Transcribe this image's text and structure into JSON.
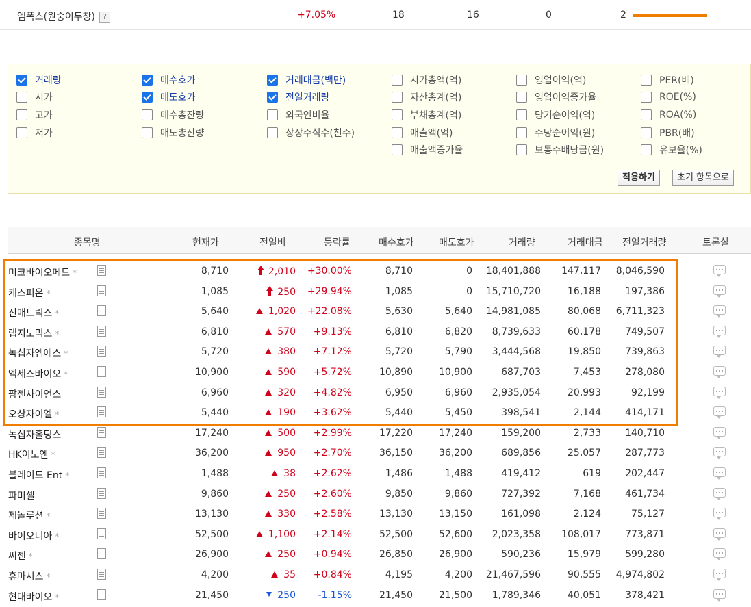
{
  "top_row": {
    "name": "엠폭스(원숭이두창)",
    "help": "?",
    "rate": "+7.05%",
    "v1": "18",
    "v2": "16",
    "v3": "0",
    "v4": "2",
    "bar_fraction": 1.0
  },
  "options": {
    "columns": [
      [
        {
          "label": "거래량",
          "checked": true
        },
        {
          "label": "시가",
          "checked": false
        },
        {
          "label": "고가",
          "checked": false
        },
        {
          "label": "저가",
          "checked": false
        }
      ],
      [
        {
          "label": "매수호가",
          "checked": true
        },
        {
          "label": "매도호가",
          "checked": true
        },
        {
          "label": "매수총잔량",
          "checked": false
        },
        {
          "label": "매도총잔량",
          "checked": false
        }
      ],
      [
        {
          "label": "거래대금(백만)",
          "checked": true
        },
        {
          "label": "전일거래량",
          "checked": true
        },
        {
          "label": "외국인비율",
          "checked": false
        },
        {
          "label": "상장주식수(천주)",
          "checked": false
        }
      ],
      [
        {
          "label": "시가총액(억)",
          "checked": false
        },
        {
          "label": "자산총계(억)",
          "checked": false
        },
        {
          "label": "부채총계(억)",
          "checked": false
        },
        {
          "label": "매출액(억)",
          "checked": false
        },
        {
          "label": "매출액증가율",
          "checked": false
        }
      ],
      [
        {
          "label": "영업이익(억)",
          "checked": false
        },
        {
          "label": "영업이익증가율",
          "checked": false
        },
        {
          "label": "당기순이익(억)",
          "checked": false
        },
        {
          "label": "주당순이익(원)",
          "checked": false
        },
        {
          "label": "보통주배당금(원)",
          "checked": false
        }
      ],
      [
        {
          "label": "PER(배)",
          "checked": false
        },
        {
          "label": "ROE(%)",
          "checked": false
        },
        {
          "label": "ROA(%)",
          "checked": false
        },
        {
          "label": "PBR(배)",
          "checked": false
        },
        {
          "label": "유보율(%)",
          "checked": false
        }
      ]
    ],
    "apply_label": "적용하기",
    "reset_label": "초기 항목으로"
  },
  "table": {
    "headers": [
      "종목명",
      "현재가",
      "전일비",
      "등락률",
      "매수호가",
      "매도호가",
      "거래량",
      "거래대금",
      "전일거래량",
      "토론실"
    ],
    "rows": [
      {
        "name": "미코바이오메드",
        "star": "*",
        "price": "8,710",
        "dir": "limit",
        "change": "2,010",
        "rate": "+30.00%",
        "bid": "8,710",
        "ask": "0",
        "vol": "18,401,888",
        "amt": "147,117",
        "prev": "8,046,590"
      },
      {
        "name": "케스피온",
        "star": "*",
        "price": "1,085",
        "dir": "limit",
        "change": "250",
        "rate": "+29.94%",
        "bid": "1,085",
        "ask": "0",
        "vol": "15,710,720",
        "amt": "16,188",
        "prev": "197,386"
      },
      {
        "name": "진매트릭스",
        "star": "*",
        "price": "5,640",
        "dir": "up",
        "change": "1,020",
        "rate": "+22.08%",
        "bid": "5,630",
        "ask": "5,640",
        "vol": "14,981,085",
        "amt": "80,068",
        "prev": "6,711,323"
      },
      {
        "name": "랩지노믹스",
        "star": "*",
        "price": "6,810",
        "dir": "up",
        "change": "570",
        "rate": "+9.13%",
        "bid": "6,810",
        "ask": "6,820",
        "vol": "8,739,633",
        "amt": "60,178",
        "prev": "749,507"
      },
      {
        "name": "녹십자엠에스",
        "star": "*",
        "price": "5,720",
        "dir": "up",
        "change": "380",
        "rate": "+7.12%",
        "bid": "5,720",
        "ask": "5,790",
        "vol": "3,444,568",
        "amt": "19,850",
        "prev": "739,863"
      },
      {
        "name": "엑세스바이오",
        "star": "*",
        "price": "10,900",
        "dir": "up",
        "change": "590",
        "rate": "+5.72%",
        "bid": "10,890",
        "ask": "10,900",
        "vol": "687,703",
        "amt": "7,453",
        "prev": "278,080"
      },
      {
        "name": "팜젠사이언스",
        "star": "",
        "price": "6,960",
        "dir": "up",
        "change": "320",
        "rate": "+4.82%",
        "bid": "6,950",
        "ask": "6,960",
        "vol": "2,935,054",
        "amt": "20,993",
        "prev": "92,199"
      },
      {
        "name": "오상자이엘",
        "star": "*",
        "price": "5,440",
        "dir": "up",
        "change": "190",
        "rate": "+3.62%",
        "bid": "5,440",
        "ask": "5,450",
        "vol": "398,541",
        "amt": "2,144",
        "prev": "414,171"
      },
      {
        "name": "녹십자홀딩스",
        "star": "",
        "price": "17,240",
        "dir": "up",
        "change": "500",
        "rate": "+2.99%",
        "bid": "17,220",
        "ask": "17,240",
        "vol": "159,200",
        "amt": "2,733",
        "prev": "140,710"
      },
      {
        "name": "HK이노엔",
        "star": "*",
        "price": "36,200",
        "dir": "up",
        "change": "950",
        "rate": "+2.70%",
        "bid": "36,150",
        "ask": "36,200",
        "vol": "689,856",
        "amt": "25,057",
        "prev": "287,773"
      },
      {
        "name": "블레이드 Ent",
        "star": "*",
        "price": "1,488",
        "dir": "up",
        "change": "38",
        "rate": "+2.62%",
        "bid": "1,486",
        "ask": "1,488",
        "vol": "419,412",
        "amt": "619",
        "prev": "202,447"
      },
      {
        "name": "파미셀",
        "star": "",
        "price": "9,860",
        "dir": "up",
        "change": "250",
        "rate": "+2.60%",
        "bid": "9,850",
        "ask": "9,860",
        "vol": "727,392",
        "amt": "7,168",
        "prev": "461,734"
      },
      {
        "name": "제놀루션",
        "star": "*",
        "price": "13,130",
        "dir": "up",
        "change": "330",
        "rate": "+2.58%",
        "bid": "13,130",
        "ask": "13,150",
        "vol": "161,098",
        "amt": "2,124",
        "prev": "75,127"
      },
      {
        "name": "바이오니아",
        "star": "*",
        "price": "52,500",
        "dir": "up",
        "change": "1,100",
        "rate": "+2.14%",
        "bid": "52,500",
        "ask": "52,600",
        "vol": "2,023,358",
        "amt": "108,017",
        "prev": "773,871"
      },
      {
        "name": "씨젠",
        "star": "*",
        "price": "26,900",
        "dir": "up",
        "change": "250",
        "rate": "+0.94%",
        "bid": "26,850",
        "ask": "26,900",
        "vol": "590,236",
        "amt": "15,979",
        "prev": "599,280"
      },
      {
        "name": "휴마시스",
        "star": "*",
        "price": "4,200",
        "dir": "up",
        "change": "35",
        "rate": "+0.84%",
        "bid": "4,195",
        "ask": "4,200",
        "vol": "21,467,596",
        "amt": "90,555",
        "prev": "4,974,802"
      },
      {
        "name": "현대바이오",
        "star": "*",
        "price": "21,450",
        "dir": "down",
        "change": "250",
        "rate": "-1.15%",
        "bid": "21,450",
        "ask": "21,500",
        "vol": "1,789,346",
        "amt": "40,051",
        "prev": "378,421"
      }
    ]
  },
  "colors": {
    "up": "#d0021b",
    "down": "#1a56d6",
    "highlight": "#f07d00",
    "checkbox": "#1a73e8"
  }
}
